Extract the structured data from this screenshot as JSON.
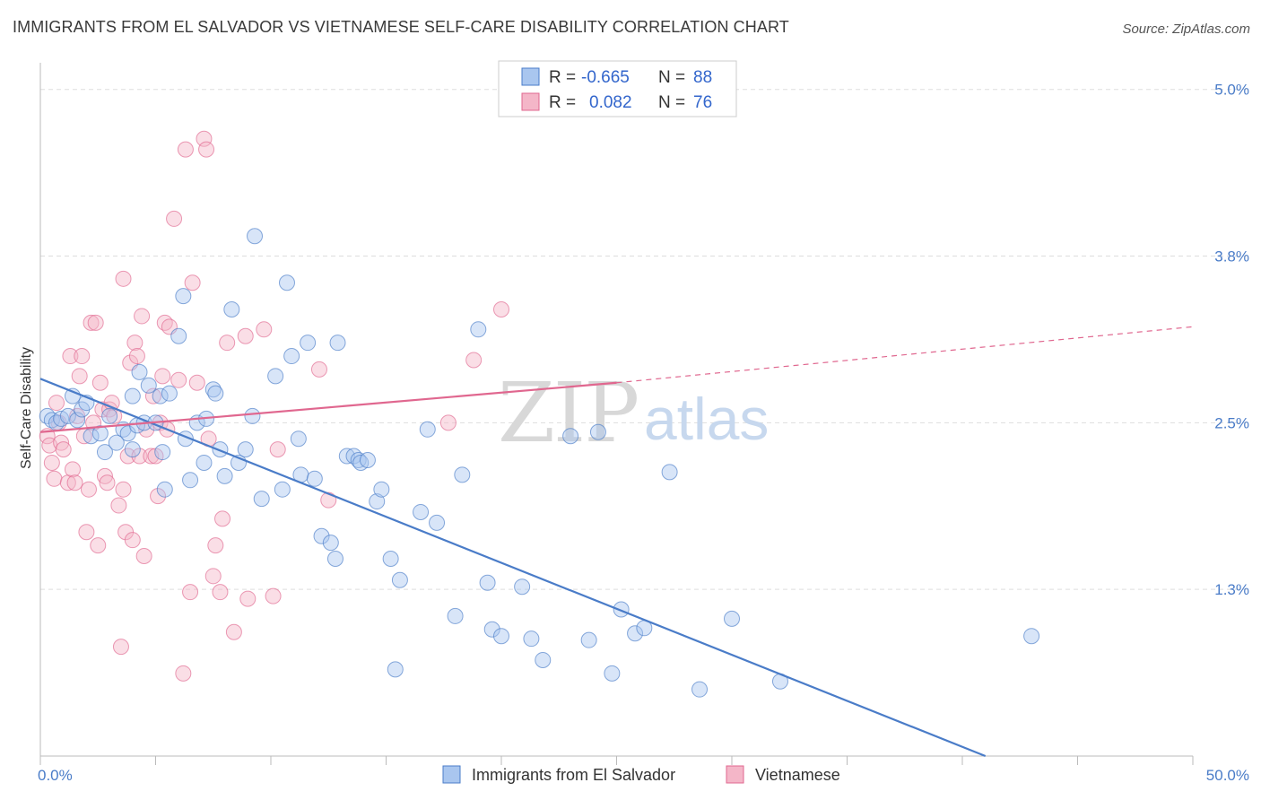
{
  "title": "IMMIGRANTS FROM EL SALVADOR VS VIETNAMESE SELF-CARE DISABILITY CORRELATION CHART",
  "source": "Source: ZipAtlas.com",
  "watermark": {
    "zip": "ZIP",
    "atlas": "atlas"
  },
  "colors": {
    "blue": "#4a7cc8",
    "blue_fill": "#a9c6ef",
    "pink": "#e0678f",
    "pink_fill": "#f4b6c8",
    "grid": "#dddddd"
  },
  "legend": {
    "rows": [
      {
        "r_label": "R =",
        "r_value": "-0.665",
        "n_label": "N =",
        "n_value": "88",
        "color": "blue"
      },
      {
        "r_label": "R =",
        "r_value": "0.082",
        "n_label": "N =",
        "n_value": "76",
        "color": "pink"
      }
    ]
  },
  "bottom_legend": [
    "Immigrants from El Salvador",
    "Vietnamese"
  ],
  "chart_data": {
    "type": "scatter",
    "title": "IMMIGRANTS FROM EL SALVADOR VS VIETNAMESE SELF-CARE DISABILITY CORRELATION CHART",
    "xlabel": "",
    "ylabel": "Self-Care Disability",
    "xlim": [
      0,
      50
    ],
    "ylim": [
      0,
      5.2
    ],
    "x_tick_labels": [
      "0.0%",
      "50.0%"
    ],
    "y_ticks": [
      1.25,
      2.5,
      3.75,
      5.0
    ],
    "y_tick_labels": [
      "1.3%",
      "2.5%",
      "3.8%",
      "5.0%"
    ],
    "grid": true,
    "legend_placement": "top-center",
    "series": [
      {
        "name": "Immigrants from El Salvador",
        "color": "blue",
        "trend": {
          "x": [
            0,
            41
          ],
          "y": [
            2.83,
            0.0
          ]
        },
        "points": [
          [
            0.3,
            2.55
          ],
          [
            0.5,
            2.52
          ],
          [
            0.7,
            2.5
          ],
          [
            0.9,
            2.53
          ],
          [
            1.2,
            2.55
          ],
          [
            1.4,
            2.7
          ],
          [
            1.6,
            2.52
          ],
          [
            1.8,
            2.6
          ],
          [
            2.0,
            2.65
          ],
          [
            2.2,
            2.4
          ],
          [
            2.6,
            2.42
          ],
          [
            2.8,
            2.28
          ],
          [
            3.0,
            2.55
          ],
          [
            3.3,
            2.35
          ],
          [
            3.6,
            2.45
          ],
          [
            3.8,
            2.42
          ],
          [
            4.0,
            2.3
          ],
          [
            4.2,
            2.48
          ],
          [
            4.0,
            2.7
          ],
          [
            4.3,
            2.88
          ],
          [
            4.5,
            2.5
          ],
          [
            4.7,
            2.78
          ],
          [
            5.0,
            2.5
          ],
          [
            5.2,
            2.7
          ],
          [
            5.3,
            2.28
          ],
          [
            5.4,
            2.0
          ],
          [
            5.6,
            2.72
          ],
          [
            6.0,
            3.15
          ],
          [
            6.2,
            3.45
          ],
          [
            6.3,
            2.38
          ],
          [
            6.5,
            2.07
          ],
          [
            6.8,
            2.5
          ],
          [
            7.1,
            2.2
          ],
          [
            7.2,
            2.53
          ],
          [
            7.5,
            2.75
          ],
          [
            7.6,
            2.72
          ],
          [
            7.8,
            2.3
          ],
          [
            8.0,
            2.1
          ],
          [
            8.3,
            3.35
          ],
          [
            8.6,
            2.2
          ],
          [
            8.9,
            2.3
          ],
          [
            9.2,
            2.55
          ],
          [
            9.3,
            3.9
          ],
          [
            9.6,
            1.93
          ],
          [
            10.2,
            2.85
          ],
          [
            10.5,
            2.0
          ],
          [
            10.7,
            3.55
          ],
          [
            10.9,
            3.0
          ],
          [
            11.2,
            2.38
          ],
          [
            11.3,
            2.11
          ],
          [
            11.6,
            3.1
          ],
          [
            11.9,
            2.08
          ],
          [
            12.2,
            1.65
          ],
          [
            12.6,
            1.6
          ],
          [
            12.8,
            1.48
          ],
          [
            12.9,
            3.1
          ],
          [
            13.3,
            2.25
          ],
          [
            13.6,
            2.25
          ],
          [
            13.8,
            2.22
          ],
          [
            13.9,
            2.2
          ],
          [
            14.2,
            2.22
          ],
          [
            14.6,
            1.91
          ],
          [
            14.8,
            2.0
          ],
          [
            15.2,
            1.48
          ],
          [
            15.4,
            0.65
          ],
          [
            15.6,
            1.32
          ],
          [
            16.5,
            1.83
          ],
          [
            16.8,
            2.45
          ],
          [
            17.2,
            1.75
          ],
          [
            18.0,
            1.05
          ],
          [
            18.3,
            2.11
          ],
          [
            19.0,
            3.2
          ],
          [
            19.4,
            1.3
          ],
          [
            19.6,
            0.95
          ],
          [
            20.0,
            0.9
          ],
          [
            20.9,
            1.27
          ],
          [
            21.3,
            0.88
          ],
          [
            21.8,
            0.72
          ],
          [
            23.0,
            2.4
          ],
          [
            23.8,
            0.87
          ],
          [
            24.2,
            2.43
          ],
          [
            24.8,
            0.62
          ],
          [
            25.2,
            1.1
          ],
          [
            25.8,
            0.92
          ],
          [
            26.2,
            0.96
          ],
          [
            27.3,
            2.13
          ],
          [
            28.6,
            0.5
          ],
          [
            30.0,
            1.03
          ],
          [
            32.1,
            0.56
          ],
          [
            43.0,
            0.9
          ]
        ]
      },
      {
        "name": "Vietnamese",
        "color": "pink",
        "trend": {
          "x": [
            0,
            25
          ],
          "y": [
            2.43,
            2.8
          ]
        },
        "trend_dashed": {
          "x": [
            25,
            50
          ],
          "y": [
            2.8,
            3.22
          ]
        },
        "points": [
          [
            0.3,
            2.4
          ],
          [
            0.4,
            2.33
          ],
          [
            0.5,
            2.2
          ],
          [
            0.6,
            2.08
          ],
          [
            0.7,
            2.65
          ],
          [
            0.8,
            2.5
          ],
          [
            0.9,
            2.35
          ],
          [
            1.0,
            2.3
          ],
          [
            1.2,
            2.05
          ],
          [
            1.3,
            3.0
          ],
          [
            1.4,
            2.15
          ],
          [
            1.5,
            2.05
          ],
          [
            1.6,
            2.55
          ],
          [
            1.7,
            2.85
          ],
          [
            1.8,
            3.0
          ],
          [
            1.9,
            2.4
          ],
          [
            2.0,
            1.68
          ],
          [
            2.1,
            2.0
          ],
          [
            2.2,
            3.25
          ],
          [
            2.3,
            2.5
          ],
          [
            2.4,
            3.25
          ],
          [
            2.5,
            1.58
          ],
          [
            2.6,
            2.8
          ],
          [
            2.7,
            2.6
          ],
          [
            2.8,
            2.1
          ],
          [
            2.9,
            2.05
          ],
          [
            3.0,
            2.6
          ],
          [
            3.1,
            2.65
          ],
          [
            3.2,
            2.55
          ],
          [
            3.4,
            1.88
          ],
          [
            3.5,
            0.82
          ],
          [
            3.6,
            2.0
          ],
          [
            3.6,
            3.58
          ],
          [
            3.7,
            1.68
          ],
          [
            3.8,
            2.25
          ],
          [
            3.9,
            2.95
          ],
          [
            4.0,
            1.62
          ],
          [
            4.1,
            3.1
          ],
          [
            4.2,
            3.0
          ],
          [
            4.3,
            2.25
          ],
          [
            4.4,
            3.3
          ],
          [
            4.5,
            1.5
          ],
          [
            4.6,
            2.45
          ],
          [
            4.8,
            2.25
          ],
          [
            4.9,
            2.7
          ],
          [
            5.0,
            2.25
          ],
          [
            5.1,
            1.95
          ],
          [
            5.2,
            2.5
          ],
          [
            5.3,
            2.85
          ],
          [
            5.4,
            3.25
          ],
          [
            5.5,
            2.45
          ],
          [
            5.6,
            3.22
          ],
          [
            5.8,
            4.03
          ],
          [
            6.0,
            2.82
          ],
          [
            6.2,
            0.62
          ],
          [
            6.3,
            4.55
          ],
          [
            6.5,
            1.23
          ],
          [
            6.6,
            3.55
          ],
          [
            6.8,
            2.8
          ],
          [
            7.1,
            4.63
          ],
          [
            7.2,
            4.55
          ],
          [
            7.3,
            2.38
          ],
          [
            7.5,
            1.35
          ],
          [
            7.6,
            1.58
          ],
          [
            7.8,
            1.23
          ],
          [
            7.9,
            1.78
          ],
          [
            8.1,
            3.1
          ],
          [
            8.4,
            0.93
          ],
          [
            8.9,
            3.15
          ],
          [
            9.0,
            1.18
          ],
          [
            9.7,
            3.2
          ],
          [
            10.1,
            1.2
          ],
          [
            10.3,
            2.3
          ],
          [
            12.1,
            2.9
          ],
          [
            12.5,
            1.92
          ],
          [
            17.7,
            2.5
          ],
          [
            18.8,
            2.97
          ],
          [
            20.0,
            3.35
          ]
        ]
      }
    ]
  }
}
